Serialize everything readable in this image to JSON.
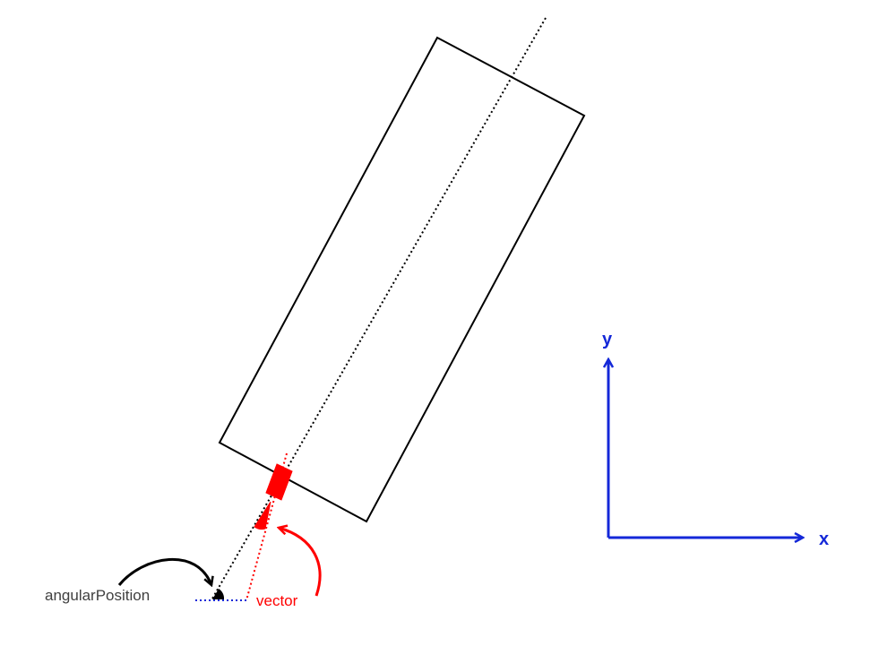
{
  "labels": {
    "angular_position": "angularPosition",
    "vector": "vector",
    "x_axis": "x",
    "y_axis": "y"
  },
  "colors": {
    "outline": "#000000",
    "highlight": "#ff0000",
    "axis": "#1428d8",
    "label_text": "#404040"
  }
}
